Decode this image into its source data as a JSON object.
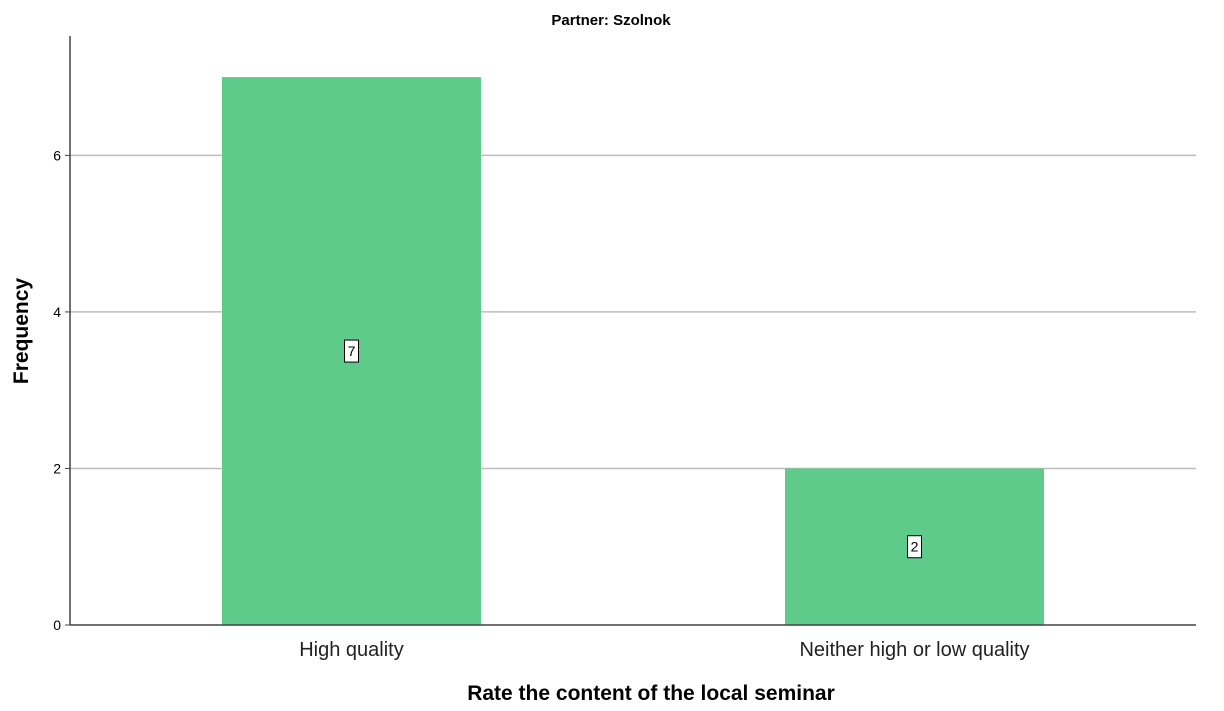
{
  "chart_data": {
    "type": "bar",
    "title": "Partner: Szolnok",
    "xlabel": "Rate the content of the local seminar",
    "ylabel": "Frequency",
    "categories": [
      "High quality",
      "Neither high or low quality"
    ],
    "values": [
      7,
      2
    ],
    "data_labels": [
      "7",
      "2"
    ],
    "ylim": [
      0,
      7.5
    ],
    "yticks": [
      0,
      2,
      4,
      6
    ],
    "ytick_labels": [
      "0",
      "2",
      "4",
      "6"
    ],
    "grid": true,
    "bar_color": "#5ECB8B",
    "grid_color": "#BDBDBD",
    "axis_color": "#444444"
  }
}
